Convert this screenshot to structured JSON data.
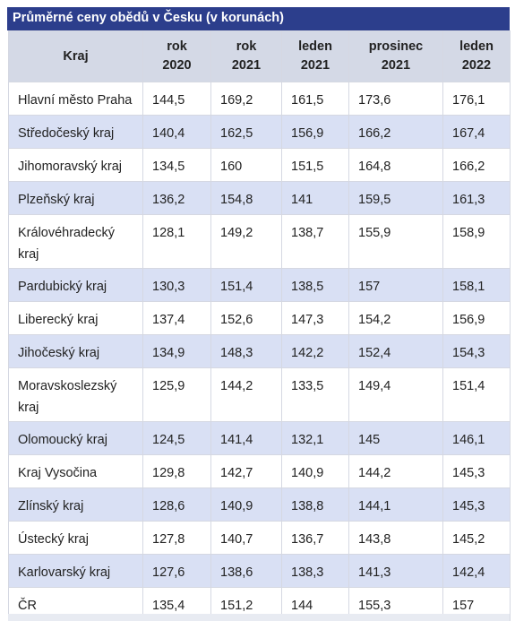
{
  "title": "Průměrné ceny obědů v Česku (v korunách)",
  "headers": [
    {
      "line1": "Kraj",
      "line2": ""
    },
    {
      "line1": "rok",
      "line2": "2020"
    },
    {
      "line1": "rok",
      "line2": "2021"
    },
    {
      "line1": "leden",
      "line2": "2021"
    },
    {
      "line1": "prosinec",
      "line2": "2021"
    },
    {
      "line1": "leden",
      "line2": "2022"
    }
  ],
  "rows": [
    {
      "kraj": "Hlavní město Praha",
      "v2020": "144,5",
      "v2021": "169,2",
      "leden2021": "161,5",
      "prosinec2021": "173,6",
      "leden2022": "176,1"
    },
    {
      "kraj": "Středočeský kraj",
      "v2020": "140,4",
      "v2021": "162,5",
      "leden2021": "156,9",
      "prosinec2021": "166,2",
      "leden2022": "167,4"
    },
    {
      "kraj": "Jihomoravský kraj",
      "v2020": "134,5",
      "v2021": "160",
      "leden2021": "151,5",
      "prosinec2021": "164,8",
      "leden2022": "166,2"
    },
    {
      "kraj": "Plzeňský kraj",
      "v2020": "136,2",
      "v2021": "154,8",
      "leden2021": "141",
      "prosinec2021": "159,5",
      "leden2022": "161,3"
    },
    {
      "kraj": "Královéhradecký kraj",
      "v2020": "128,1",
      "v2021": "149,2",
      "leden2021": "138,7",
      "prosinec2021": "155,9",
      "leden2022": "158,9"
    },
    {
      "kraj": "Pardubický kraj",
      "v2020": "130,3",
      "v2021": "151,4",
      "leden2021": "138,5",
      "prosinec2021": "157",
      "leden2022": "158,1"
    },
    {
      "kraj": "Liberecký kraj",
      "v2020": "137,4",
      "v2021": "152,6",
      "leden2021": "147,3",
      "prosinec2021": "154,2",
      "leden2022": "156,9"
    },
    {
      "kraj": "Jihočeský kraj",
      "v2020": "134,9",
      "v2021": "148,3",
      "leden2021": "142,2",
      "prosinec2021": "152,4",
      "leden2022": "154,3"
    },
    {
      "kraj": "Moravskoslezský kraj",
      "v2020": "125,9",
      "v2021": "144,2",
      "leden2021": "133,5",
      "prosinec2021": "149,4",
      "leden2022": "151,4"
    },
    {
      "kraj": "Olomoucký kraj",
      "v2020": "124,5",
      "v2021": "141,4",
      "leden2021": "132,1",
      "prosinec2021": "145",
      "leden2022": "146,1"
    },
    {
      "kraj": "Kraj Vysočina",
      "v2020": "129,8",
      "v2021": "142,7",
      "leden2021": "140,9",
      "prosinec2021": "144,2",
      "leden2022": "145,3"
    },
    {
      "kraj": "Zlínský kraj",
      "v2020": "128,6",
      "v2021": "140,9",
      "leden2021": "138,8",
      "prosinec2021": "144,1",
      "leden2022": "145,3"
    },
    {
      "kraj": "Ústecký kraj",
      "v2020": "127,8",
      "v2021": "140,7",
      "leden2021": "136,7",
      "prosinec2021": "143,8",
      "leden2022": "145,2"
    },
    {
      "kraj": "Karlovarský kraj",
      "v2020": "127,6",
      "v2021": "138,6",
      "leden2021": "138,3",
      "prosinec2021": "141,3",
      "leden2022": "142,4"
    },
    {
      "kraj": "ČR",
      "v2020": "135,4",
      "v2021": "151,2",
      "leden2021": "144",
      "prosinec2021": "155,3",
      "leden2022": "157"
    }
  ],
  "colors": {
    "title_bg": "#2c3e8c",
    "header_bg": "#d4d9e6",
    "row_alt_bg": "#d9e0f4",
    "row_bg": "#ffffff"
  }
}
